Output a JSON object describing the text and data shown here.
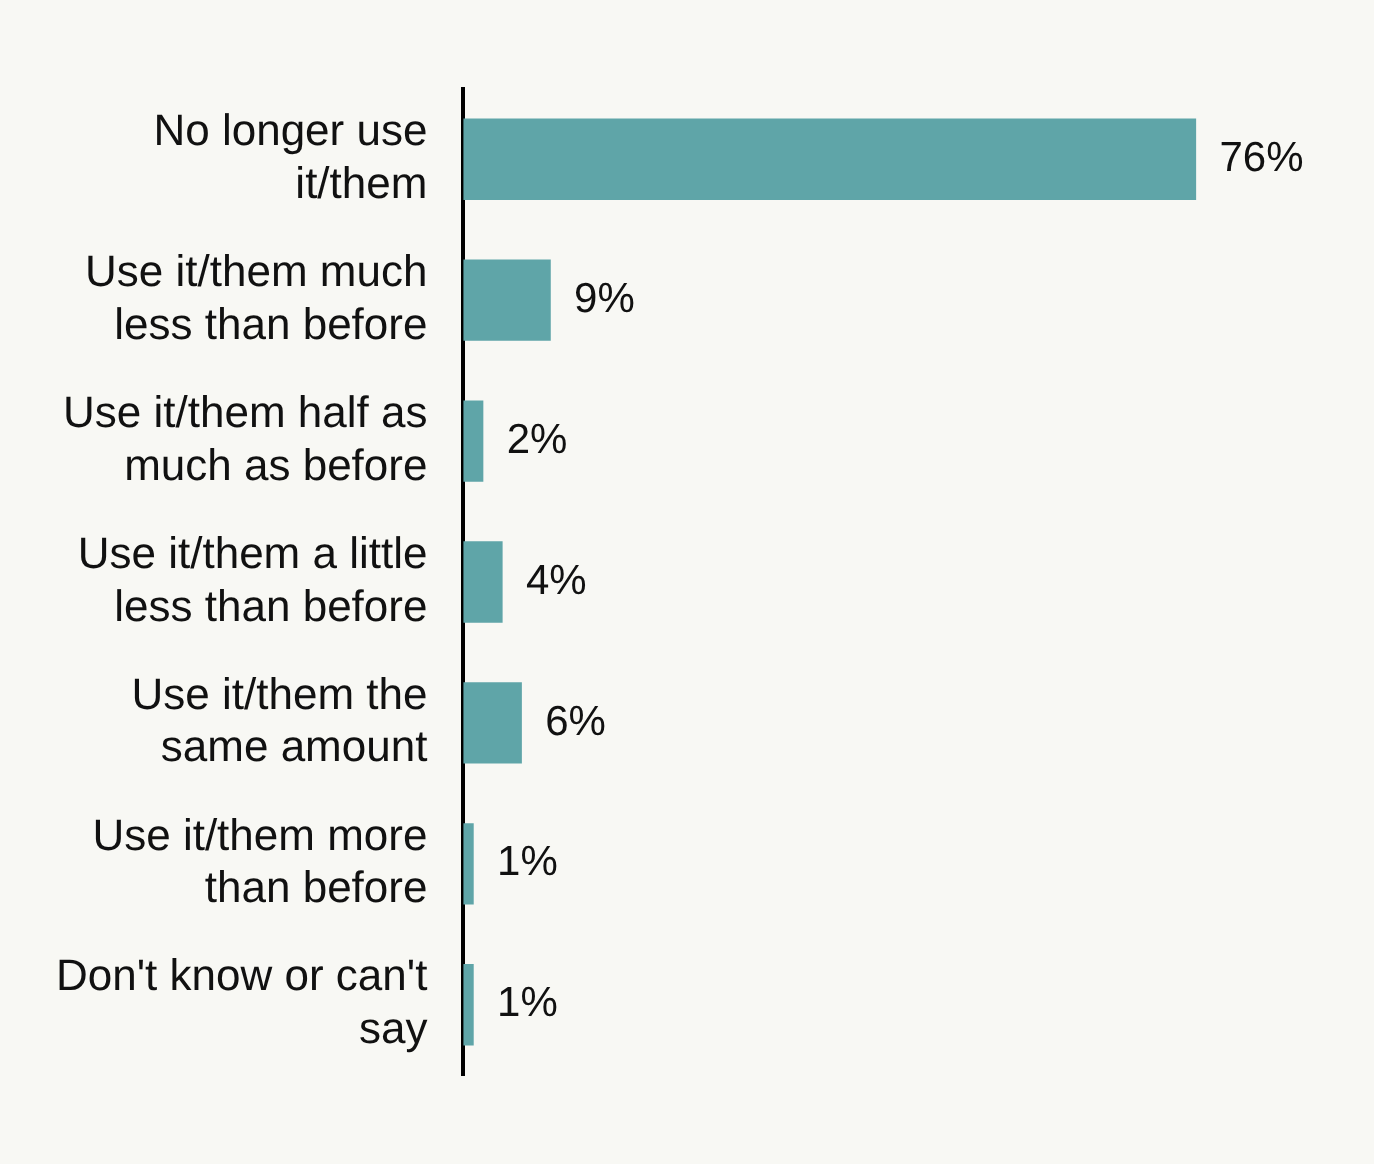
{
  "chart_data": {
    "type": "bar",
    "orientation": "horizontal",
    "categories": [
      "No longer use it/them",
      "Use it/them much less than before",
      "Use it/them half as much as before",
      "Use it/them a little less than before",
      "Use it/them the same amount",
      "Use it/them more than before",
      "Don't know or can't say"
    ],
    "values": [
      76,
      9,
      2,
      4,
      6,
      1,
      1
    ],
    "value_labels": [
      "76%",
      "9%",
      "2%",
      "4%",
      "6%",
      "1%",
      "1%"
    ],
    "color": "#5fa5a8",
    "legend": false
  }
}
